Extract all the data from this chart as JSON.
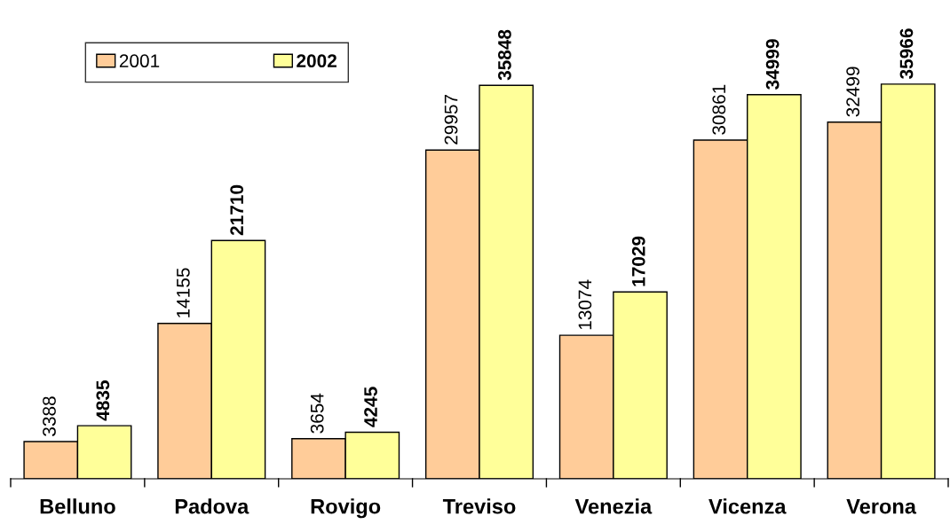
{
  "chart_data": {
    "type": "bar",
    "categories": [
      "Belluno",
      "Padova",
      "Rovigo",
      "Treviso",
      "Venezia",
      "Vicenza",
      "Verona"
    ],
    "series": [
      {
        "name": "2001",
        "color": "#ffcc99",
        "values": [
          3388,
          14155,
          3654,
          29957,
          13074,
          30861,
          32499
        ]
      },
      {
        "name": "2002",
        "color": "#ffff99",
        "values": [
          4835,
          21710,
          4245,
          35848,
          17029,
          34999,
          35966
        ]
      }
    ],
    "data_labels": true,
    "legend": "top left",
    "grid": false
  }
}
